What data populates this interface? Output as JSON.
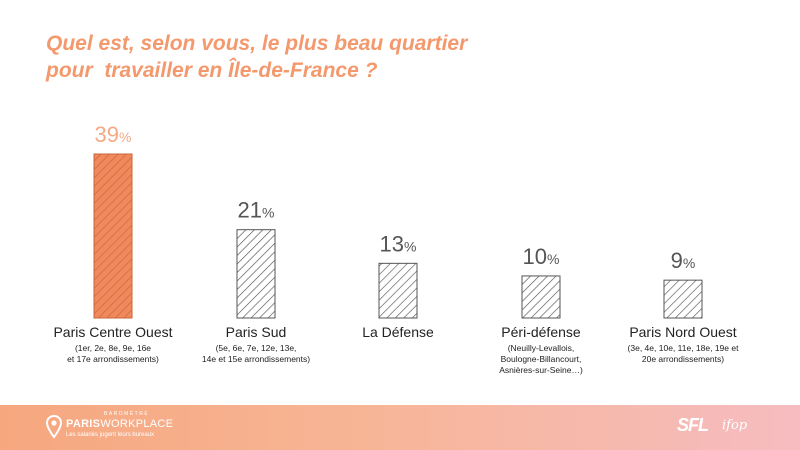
{
  "title": {
    "line1": "Quel est, selon vous, le plus beau quartier",
    "line2": "pour  travailler en Île-de-France ?"
  },
  "colors": {
    "title": "#f3996d",
    "highlight_bar": "#f08a5d",
    "highlight_hatch": "#c8643a",
    "highlight_value": "#f6a985",
    "bar_hatch": "#555555",
    "bar_border": "#555555",
    "value_text": "#555555",
    "label_text": "#222222",
    "footer_from": "#f6a77e",
    "footer_to": "#f6bcc0"
  },
  "chart_data": {
    "type": "bar",
    "title": "Quel est, selon vous, le plus beau quartier pour  travailler en Île-de-France ?",
    "categories": [
      "Paris Centre Ouest",
      "Paris Sud",
      "La Défense",
      "Péri-défense",
      "Paris Nord Ouest"
    ],
    "values": [
      39,
      21,
      13,
      10,
      9
    ],
    "unit": "%",
    "value_labels": [
      "39",
      "21",
      "13",
      "10",
      "9"
    ],
    "sublabels": [
      [
        "(1er, 2e, 8e, 9e, 16e",
        "et 17e arrondissements)"
      ],
      [
        "(5e, 6e, 7e, 12e, 13e,",
        "14e et 15e arrondissements)"
      ],
      [],
      [
        "(Neuilly-Levallois,",
        "Boulogne-Billancourt,",
        "Asnières-sur-Seine…)"
      ],
      [
        "(3e, 4e, 10e, 11e, 18e, 19e et",
        "20e arrondissements)"
      ]
    ],
    "highlight_index": 0,
    "ylim": [
      0,
      39
    ],
    "grid": false,
    "legend": "none"
  },
  "footer": {
    "brand_small": "BAROMÈTRE",
    "brand_bold": "PARIS",
    "brand_light": "WORKPLACE",
    "tagline": "Les salariés jugent leurs bureaux",
    "logo1": "SFL",
    "logo2": "ifop"
  }
}
